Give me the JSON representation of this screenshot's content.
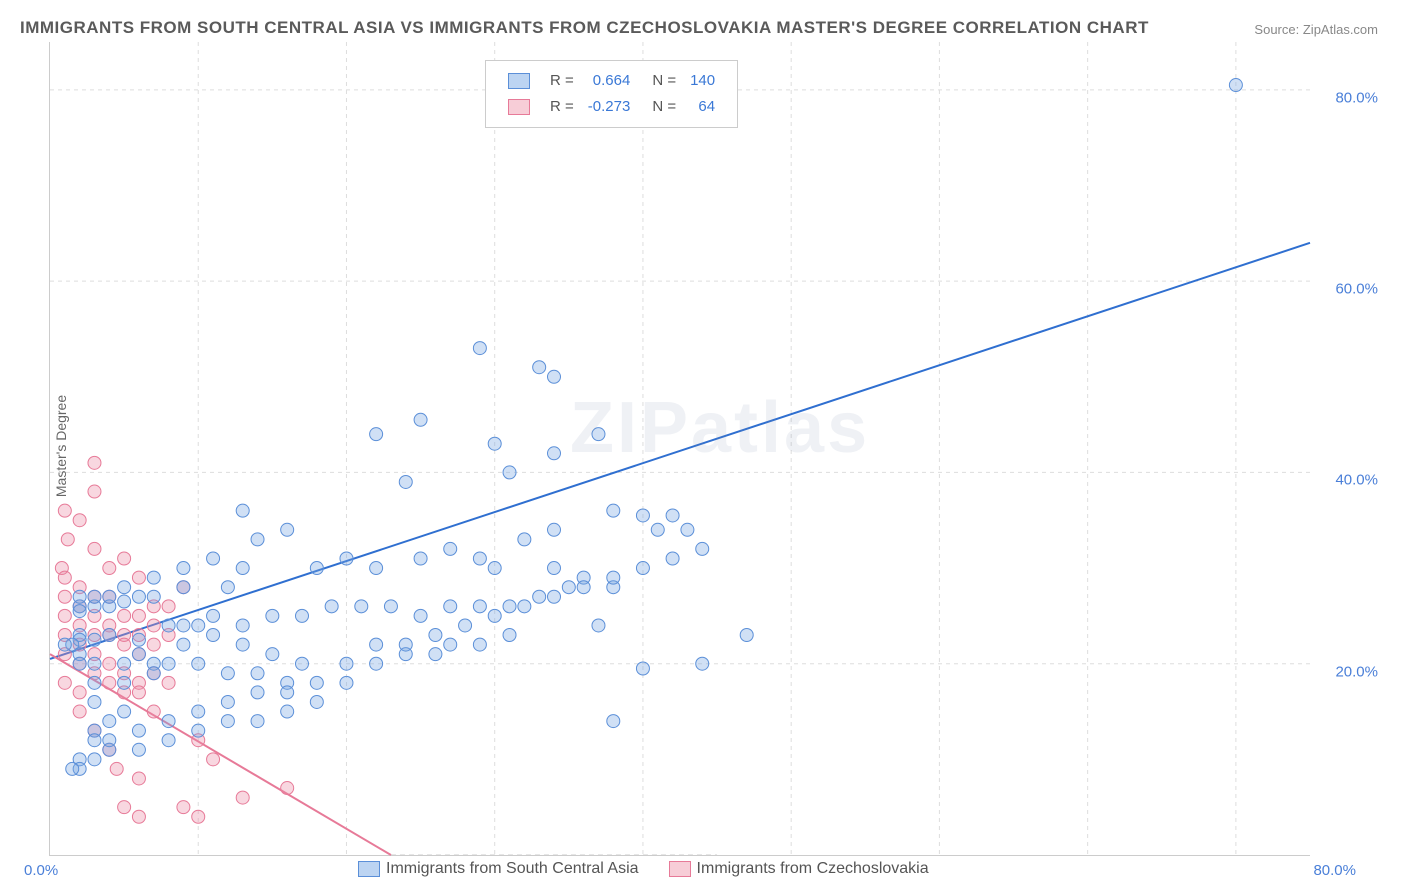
{
  "title": "IMMIGRANTS FROM SOUTH CENTRAL ASIA VS IMMIGRANTS FROM CZECHOSLOVAKIA MASTER'S DEGREE CORRELATION CHART",
  "source_label": "Source:",
  "source_value": "ZipAtlas.com",
  "ylabel": "Master's Degree",
  "watermark": "ZIPatlas",
  "legend_top": {
    "series": [
      {
        "swatch_fill": "#bcd4f2",
        "swatch_border": "#5b8fd8",
        "r_label": "R =",
        "r_value": "0.664",
        "n_label": "N =",
        "n_value": "140",
        "value_color": "#3a78d6"
      },
      {
        "swatch_fill": "#f7cdd7",
        "swatch_border": "#e77a98",
        "r_label": "R =",
        "r_value": "-0.273",
        "n_label": "N =",
        "n_value": "64",
        "value_color": "#3a78d6"
      }
    ]
  },
  "legend_bottom": {
    "items": [
      {
        "swatch_fill": "#bcd4f2",
        "swatch_border": "#5b8fd8",
        "label": "Immigrants from South Central Asia"
      },
      {
        "swatch_fill": "#f7cdd7",
        "swatch_border": "#e77a98",
        "label": "Immigrants from Czechoslovakia"
      }
    ]
  },
  "chart": {
    "type": "scatter",
    "xlim": [
      0,
      85
    ],
    "ylim": [
      0,
      85
    ],
    "xtick_left": "0.0%",
    "xtick_right": "80.0%",
    "yticks": [
      {
        "value": 20,
        "label": "20.0%"
      },
      {
        "value": 40,
        "label": "40.0%"
      },
      {
        "value": 60,
        "label": "60.0%"
      },
      {
        "value": 80,
        "label": "80.0%"
      }
    ],
    "vgrids": [
      10,
      20,
      30,
      40,
      50,
      60,
      70,
      80
    ],
    "grid_color": "#dddddd",
    "background_color": "#ffffff",
    "axis_label_color": "#4a7fd8",
    "regression_lines": [
      {
        "x1": 0,
        "y1": 20.5,
        "x2": 85,
        "y2": 64,
        "color": "#2f6fd0",
        "width": 2,
        "dash": ""
      },
      {
        "x1": 0,
        "y1": 21,
        "x2": 23,
        "y2": 0,
        "color": "#e77a98",
        "width": 2,
        "dash": ""
      },
      {
        "x1": 23,
        "y1": 0,
        "x2": 45,
        "y2": 0,
        "color": "#cccccc",
        "width": 1,
        "dash": "5 4"
      }
    ],
    "series1_color": {
      "fill": "rgba(120,165,225,0.35)",
      "border": "#5b8fd8"
    },
    "series2_color": {
      "fill": "rgba(235,140,165,0.35)",
      "border": "#e77a98"
    },
    "series1_points": [
      [
        80,
        80.5
      ],
      [
        29,
        53
      ],
      [
        33,
        51
      ],
      [
        34,
        50
      ],
      [
        25,
        45.5
      ],
      [
        22,
        44
      ],
      [
        30,
        43
      ],
      [
        37,
        44
      ],
      [
        34,
        42
      ],
      [
        31,
        40
      ],
      [
        24,
        39
      ],
      [
        13,
        36
      ],
      [
        38,
        36
      ],
      [
        40,
        35.5
      ],
      [
        42,
        35.5
      ],
      [
        43,
        34
      ],
      [
        41,
        34
      ],
      [
        34,
        34
      ],
      [
        32,
        33
      ],
      [
        16,
        34
      ],
      [
        14,
        33
      ],
      [
        27,
        32
      ],
      [
        29,
        31
      ],
      [
        25,
        31
      ],
      [
        20,
        31
      ],
      [
        18,
        30
      ],
      [
        22,
        30
      ],
      [
        30,
        30
      ],
      [
        34,
        30
      ],
      [
        36,
        29
      ],
      [
        38,
        28
      ],
      [
        12,
        28
      ],
      [
        9,
        28
      ],
      [
        7,
        27
      ],
      [
        6,
        27
      ],
      [
        5,
        26.5
      ],
      [
        4,
        26
      ],
      [
        3,
        26
      ],
      [
        2,
        26
      ],
      [
        2,
        25.5
      ],
      [
        47,
        23
      ],
      [
        44,
        20
      ],
      [
        40,
        19.5
      ],
      [
        38,
        14
      ],
      [
        35,
        28
      ],
      [
        33,
        27
      ],
      [
        31,
        26
      ],
      [
        29,
        26
      ],
      [
        27,
        26
      ],
      [
        25,
        25
      ],
      [
        23,
        26
      ],
      [
        21,
        26
      ],
      [
        19,
        26
      ],
      [
        17,
        25
      ],
      [
        15,
        25
      ],
      [
        13,
        24
      ],
      [
        11,
        25
      ],
      [
        10,
        24
      ],
      [
        8,
        24
      ],
      [
        6,
        22.5
      ],
      [
        4,
        23
      ],
      [
        3,
        22.5
      ],
      [
        2,
        23
      ],
      [
        2,
        22.5
      ],
      [
        1.5,
        22
      ],
      [
        1,
        22
      ],
      [
        3,
        20
      ],
      [
        5,
        20
      ],
      [
        6,
        21
      ],
      [
        8,
        20
      ],
      [
        10,
        20
      ],
      [
        12,
        19
      ],
      [
        14,
        19
      ],
      [
        16,
        18
      ],
      [
        18,
        18
      ],
      [
        20,
        18
      ],
      [
        37,
        24
      ],
      [
        31,
        23
      ],
      [
        29,
        22
      ],
      [
        27,
        22
      ],
      [
        26,
        21
      ],
      [
        24,
        21
      ],
      [
        22,
        20
      ],
      [
        20,
        20
      ],
      [
        18,
        16
      ],
      [
        16,
        15
      ],
      [
        14,
        14
      ],
      [
        12,
        14
      ],
      [
        10,
        13
      ],
      [
        8,
        12
      ],
      [
        6,
        11
      ],
      [
        4,
        11
      ],
      [
        3,
        10
      ],
      [
        2,
        10
      ],
      [
        2,
        9
      ],
      [
        1.5,
        9
      ],
      [
        3,
        13
      ],
      [
        5,
        15
      ],
      [
        7,
        20
      ],
      [
        9,
        22
      ],
      [
        3,
        18
      ],
      [
        3,
        16
      ],
      [
        4,
        14
      ],
      [
        5,
        18
      ],
      [
        7,
        19
      ],
      [
        9,
        24
      ],
      [
        11,
        23
      ],
      [
        13,
        22
      ],
      [
        15,
        21
      ],
      [
        17,
        20
      ],
      [
        3,
        12
      ],
      [
        4,
        12
      ],
      [
        6,
        13
      ],
      [
        8,
        14
      ],
      [
        10,
        15
      ],
      [
        12,
        16
      ],
      [
        14,
        17
      ],
      [
        16,
        17
      ],
      [
        22,
        22
      ],
      [
        24,
        22
      ],
      [
        26,
        23
      ],
      [
        28,
        24
      ],
      [
        30,
        25
      ],
      [
        32,
        26
      ],
      [
        34,
        27
      ],
      [
        36,
        28
      ],
      [
        38,
        29
      ],
      [
        40,
        30
      ],
      [
        42,
        31
      ],
      [
        44,
        32
      ],
      [
        13,
        30
      ],
      [
        11,
        31
      ],
      [
        9,
        30
      ],
      [
        7,
        29
      ],
      [
        5,
        28
      ],
      [
        4,
        27
      ],
      [
        3,
        27
      ],
      [
        2,
        27
      ],
      [
        2,
        21
      ],
      [
        2,
        20
      ]
    ],
    "series2_points": [
      [
        3,
        41
      ],
      [
        3,
        38
      ],
      [
        1,
        36
      ],
      [
        2,
        35
      ],
      [
        1.2,
        33
      ],
      [
        0.8,
        30
      ],
      [
        3,
        32
      ],
      [
        5,
        31
      ],
      [
        4,
        30
      ],
      [
        6,
        29
      ],
      [
        1,
        29
      ],
      [
        2,
        28
      ],
      [
        3,
        27
      ],
      [
        4,
        27
      ],
      [
        7,
        26
      ],
      [
        6,
        25
      ],
      [
        5,
        25
      ],
      [
        8,
        26
      ],
      [
        9,
        28
      ],
      [
        7,
        24
      ],
      [
        1,
        27
      ],
      [
        2,
        26
      ],
      [
        3,
        25
      ],
      [
        4,
        24
      ],
      [
        5,
        23
      ],
      [
        6,
        23
      ],
      [
        8,
        23
      ],
      [
        1,
        25
      ],
      [
        2,
        24
      ],
      [
        3,
        23
      ],
      [
        4,
        23
      ],
      [
        5,
        22
      ],
      [
        6,
        21
      ],
      [
        7,
        22
      ],
      [
        1,
        23
      ],
      [
        2,
        22
      ],
      [
        3,
        21
      ],
      [
        4,
        20
      ],
      [
        5,
        19
      ],
      [
        6,
        18
      ],
      [
        7,
        19
      ],
      [
        8,
        18
      ],
      [
        1,
        21
      ],
      [
        2,
        20
      ],
      [
        3,
        19
      ],
      [
        4,
        18
      ],
      [
        5,
        17
      ],
      [
        6,
        17
      ],
      [
        1,
        18
      ],
      [
        2,
        17
      ],
      [
        2,
        15
      ],
      [
        3,
        13
      ],
      [
        4,
        11
      ],
      [
        4.5,
        9
      ],
      [
        6,
        8
      ],
      [
        5,
        5
      ],
      [
        6,
        4
      ],
      [
        9,
        5
      ],
      [
        10,
        4
      ],
      [
        13,
        6
      ],
      [
        16,
        7
      ],
      [
        11,
        10
      ],
      [
        10,
        12
      ],
      [
        7,
        15
      ]
    ]
  }
}
